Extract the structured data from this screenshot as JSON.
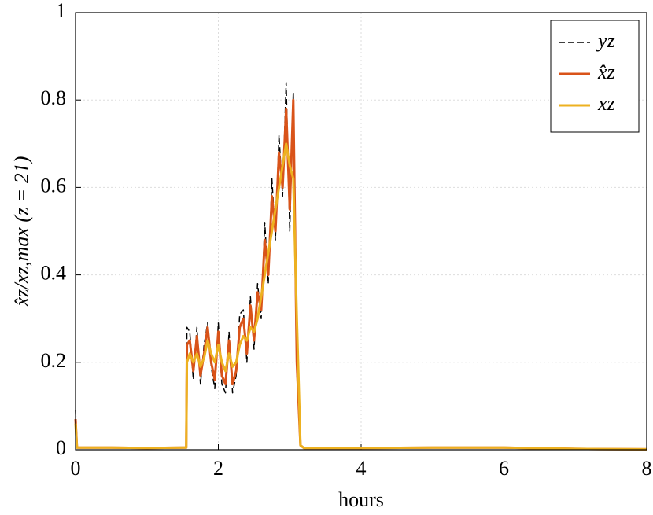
{
  "chart_data": {
    "type": "line",
    "xlabel": "hours",
    "ylabel": "x̂z/xz,max   (z = 21)",
    "x": [
      0,
      0.02,
      0.05,
      0.5,
      1,
      1.5,
      1.55,
      1.56,
      1.6,
      1.65,
      1.7,
      1.75,
      1.8,
      1.85,
      1.9,
      1.95,
      2,
      2.05,
      2.1,
      2.15,
      2.2,
      2.25,
      2.3,
      2.35,
      2.4,
      2.45,
      2.5,
      2.55,
      2.6,
      2.65,
      2.7,
      2.75,
      2.8,
      2.85,
      2.9,
      2.95,
      3,
      3.05,
      3.1,
      3.15,
      3.2,
      3.5,
      4,
      5,
      6,
      7,
      8
    ],
    "series": [
      {
        "name": "yz",
        "color": "#000000",
        "dash": true,
        "values": [
          0.09,
          0.005,
          0.005,
          0.005,
          0.004,
          0.005,
          0.005,
          0.28,
          0.27,
          0.16,
          0.28,
          0.15,
          0.24,
          0.29,
          0.19,
          0.14,
          0.29,
          0.15,
          0.13,
          0.27,
          0.13,
          0.17,
          0.31,
          0.32,
          0.2,
          0.35,
          0.23,
          0.38,
          0.3,
          0.52,
          0.38,
          0.62,
          0.48,
          0.72,
          0.58,
          0.84,
          0.5,
          0.82,
          0.18,
          0.01,
          0.004,
          0.004,
          0.004,
          0.005,
          0.005,
          0.002,
          0.001
        ]
      },
      {
        "name": "x̂z",
        "color": "#d95319",
        "dash": false,
        "values": [
          0.07,
          0.005,
          0.005,
          0.005,
          0.004,
          0.005,
          0.005,
          0.24,
          0.25,
          0.18,
          0.26,
          0.17,
          0.22,
          0.28,
          0.2,
          0.16,
          0.27,
          0.17,
          0.15,
          0.25,
          0.15,
          0.18,
          0.28,
          0.3,
          0.22,
          0.33,
          0.25,
          0.36,
          0.32,
          0.48,
          0.4,
          0.58,
          0.5,
          0.68,
          0.6,
          0.78,
          0.55,
          0.8,
          0.2,
          0.01,
          0.004,
          0.004,
          0.004,
          0.005,
          0.005,
          0.002,
          0.001
        ]
      },
      {
        "name": "xz",
        "color": "#edb120",
        "dash": false,
        "values": [
          0.06,
          0.005,
          0.005,
          0.005,
          0.004,
          0.005,
          0.005,
          0.2,
          0.22,
          0.2,
          0.22,
          0.19,
          0.21,
          0.25,
          0.22,
          0.2,
          0.24,
          0.2,
          0.18,
          0.22,
          0.19,
          0.2,
          0.24,
          0.26,
          0.25,
          0.28,
          0.27,
          0.3,
          0.35,
          0.4,
          0.45,
          0.5,
          0.55,
          0.6,
          0.65,
          0.7,
          0.65,
          0.62,
          0.3,
          0.01,
          0.004,
          0.004,
          0.004,
          0.005,
          0.005,
          0.002,
          0.001
        ]
      }
    ],
    "xlim": [
      0,
      8
    ],
    "ylim": [
      0,
      1
    ],
    "xticks": [
      0,
      2,
      4,
      6,
      8
    ],
    "yticks": [
      0,
      0.2,
      0.4,
      0.6,
      0.8,
      1
    ],
    "grid": true,
    "legend": "top-right"
  }
}
